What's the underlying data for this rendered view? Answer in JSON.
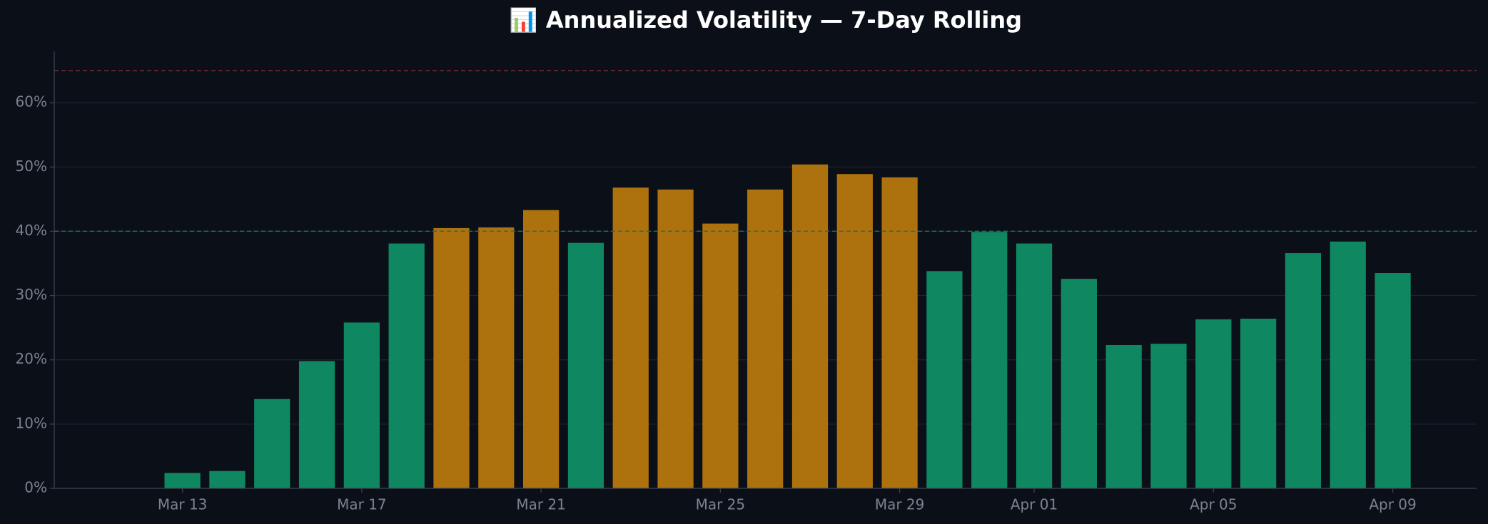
{
  "chart_data": {
    "type": "bar",
    "title": "📊 Annualized Volatility — 7-Day Rolling",
    "categories": [
      "Mar 13",
      null,
      null,
      null,
      "Mar 17",
      null,
      null,
      null,
      "Mar 21",
      null,
      null,
      null,
      "Mar 25",
      null,
      null,
      null,
      "Mar 29",
      null,
      null,
      "Apr 01",
      null,
      null,
      null,
      "Apr 05",
      null,
      null,
      null,
      "Apr 09"
    ],
    "values": [
      2.4,
      2.7,
      13.9,
      19.8,
      25.8,
      38.1,
      40.5,
      40.6,
      43.3,
      38.2,
      46.8,
      46.5,
      41.2,
      46.5,
      50.4,
      48.9,
      48.4,
      33.8,
      39.9,
      38.1,
      32.6,
      22.3,
      22.5,
      26.3,
      26.4,
      36.6,
      38.4,
      33.5
    ],
    "colors": [
      "#0f8862",
      "#0f8862",
      "#0f8862",
      "#0f8862",
      "#0f8862",
      "#0f8862",
      "#ad720e",
      "#ad720e",
      "#ad720e",
      "#0f8862",
      "#ad720e",
      "#ad720e",
      "#ad720e",
      "#ad720e",
      "#ad720e",
      "#ad720e",
      "#ad720e",
      "#0f8862",
      "#0f8862",
      "#0f8862",
      "#0f8862",
      "#0f8862",
      "#0f8862",
      "#0f8862",
      "#0f8862",
      "#0f8862",
      "#0f8862",
      "#0f8862"
    ],
    "ylim": [
      0,
      68
    ],
    "yticks": [
      {
        "value": 0,
        "label": "0%"
      },
      {
        "value": 10,
        "label": "10%"
      },
      {
        "value": 20,
        "label": "20%"
      },
      {
        "value": 30,
        "label": "30%"
      },
      {
        "value": 40,
        "label": "40%"
      },
      {
        "value": 50,
        "label": "50%"
      },
      {
        "value": 60,
        "label": "60%"
      }
    ],
    "reference_lines": [
      {
        "value": 40,
        "color": "#1f6f63"
      },
      {
        "value": 65,
        "color": "#7a2a35"
      }
    ],
    "grid": true
  }
}
